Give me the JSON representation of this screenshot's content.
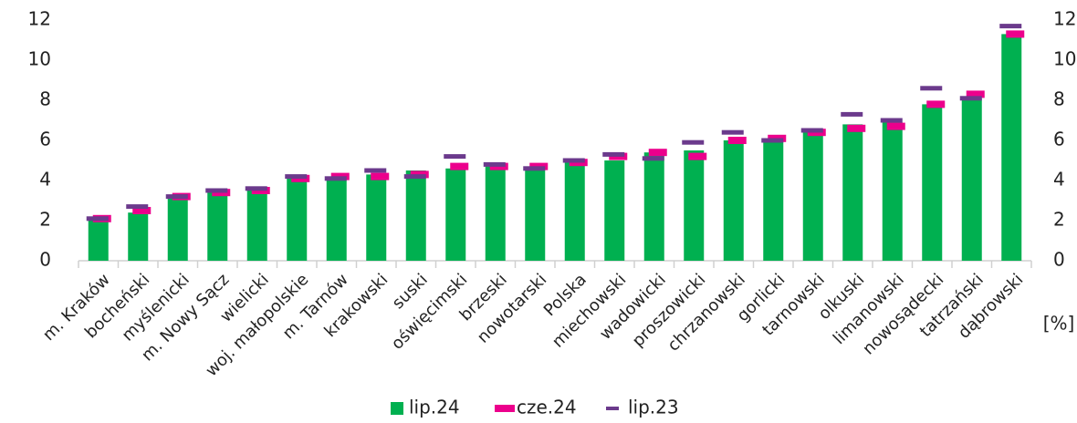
{
  "chart_data": {
    "type": "bar",
    "categories": [
      "m. Kraków",
      "bocheński",
      "myślenicki",
      "m. Nowy Sącz",
      "wielicki",
      "woj. małopolskie",
      "m. Tarnów",
      "krakowski",
      "suski",
      "oświęcimski",
      "brzeski",
      "nowotarski",
      "Polska",
      "miechowski",
      "wadowicki",
      "proszowicki",
      "chrzanowski",
      "gorlicki",
      "tarnowski",
      "olkuski",
      "limanowski",
      "nowosądecki",
      "tatrzański",
      "dąbrowski"
    ],
    "series": [
      {
        "name": "lip.24",
        "color": "#00b050",
        "style": "bar",
        "values": [
          2.0,
          2.4,
          3.1,
          3.4,
          3.5,
          4.1,
          4.1,
          4.3,
          4.5,
          4.6,
          4.7,
          4.7,
          4.9,
          5.0,
          5.4,
          5.5,
          6.0,
          6.0,
          6.4,
          6.8,
          6.9,
          7.8,
          8.1,
          11.3
        ]
      },
      {
        "name": "cze.24",
        "color": "#ec008c",
        "style": "marker",
        "values": [
          2.1,
          2.5,
          3.2,
          3.4,
          3.5,
          4.1,
          4.2,
          4.2,
          4.3,
          4.7,
          4.7,
          4.7,
          4.9,
          5.2,
          5.4,
          5.2,
          6.0,
          6.1,
          6.4,
          6.6,
          6.7,
          7.8,
          8.3,
          11.3
        ]
      },
      {
        "name": "lip.23",
        "color": "#6b3a8c",
        "style": "dash",
        "values": [
          2.1,
          2.7,
          3.2,
          3.5,
          3.6,
          4.2,
          4.1,
          4.5,
          4.2,
          5.2,
          4.8,
          4.6,
          5.0,
          5.3,
          5.1,
          5.9,
          6.4,
          6.0,
          6.5,
          7.3,
          7.0,
          8.6,
          8.1,
          11.7
        ]
      }
    ],
    "ylim": [
      0,
      12
    ],
    "yticks": [
      0,
      2,
      4,
      6,
      8,
      10,
      12
    ],
    "y2lim": [
      0,
      12
    ],
    "y2ticks": [
      0,
      2,
      4,
      6,
      8,
      10,
      12
    ],
    "y2label": "[%]"
  }
}
